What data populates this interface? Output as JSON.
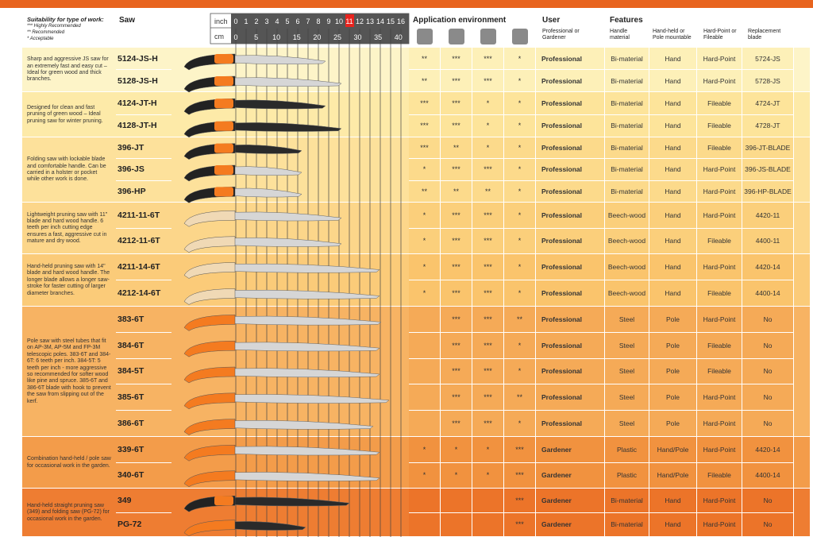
{
  "legend": {
    "title": "Suitability for type of work:",
    "items": [
      "*** Highly Recommended",
      "**  Recommended",
      "*   Acceptable"
    ]
  },
  "header": {
    "saw": "Saw",
    "inch": "inch",
    "cm": "cm",
    "inch_ticks": [
      0,
      1,
      2,
      3,
      4,
      5,
      6,
      7,
      8,
      9,
      10,
      11,
      12,
      13,
      14,
      15,
      16
    ],
    "cm_ticks": [
      0,
      5,
      10,
      15,
      20,
      25,
      30,
      35,
      40
    ],
    "application": "Application environment",
    "user": "User",
    "user_sub": "Professional or Gardener",
    "features": "Features",
    "handle": "Handle material",
    "mount": "Hand-held or Pole mountable",
    "point": "Hard-Point or Fileable",
    "blade": "Replacement blade"
  },
  "groups": [
    {
      "description": "Sharp and aggressive JS saw for an extremely fast and easy cut – Ideal for green wood and thick branches.",
      "rows": [
        {
          "saw": "5124-JS-H",
          "ratings": [
            "**",
            "***",
            "***",
            "*"
          ],
          "user": "Professional",
          "handle": "Bi-material",
          "mount": "Hand",
          "point": "Hard-Point",
          "blade": "5724-JS"
        },
        {
          "saw": "5128-JS-H",
          "ratings": [
            "**",
            "***",
            "***",
            "*"
          ],
          "user": "Professional",
          "handle": "Bi-material",
          "mount": "Hand",
          "point": "Hard-Point",
          "blade": "5728-JS"
        }
      ]
    },
    {
      "description": "Designed for clean and fast pruning of green wood – Ideal pruning saw for winter pruning.",
      "rows": [
        {
          "saw": "4124-JT-H",
          "ratings": [
            "***",
            "***",
            "*",
            "*"
          ],
          "user": "Professional",
          "handle": "Bi-material",
          "mount": "Hand",
          "point": "Fileable",
          "blade": "4724-JT"
        },
        {
          "saw": "4128-JT-H",
          "ratings": [
            "***",
            "***",
            "*",
            "*"
          ],
          "user": "Professional",
          "handle": "Bi-material",
          "mount": "Hand",
          "point": "Fileable",
          "blade": "4728-JT"
        }
      ]
    },
    {
      "description": "Folding saw with lockable blade and comfortable handle. Can be carried in a holster or pocket while other work is done.",
      "rows": [
        {
          "saw": "396-JT",
          "ratings": [
            "***",
            "**",
            "*",
            "*"
          ],
          "user": "Professional",
          "handle": "Bi-material",
          "mount": "Hand",
          "point": "Fileable",
          "blade": "396-JT-BLADE"
        },
        {
          "saw": "396-JS",
          "ratings": [
            "*",
            "***",
            "***",
            "*"
          ],
          "user": "Professional",
          "handle": "Bi-material",
          "mount": "Hand",
          "point": "Hard-Point",
          "blade": "396-JS-BLADE"
        },
        {
          "saw": "396-HP",
          "ratings": [
            "**",
            "**",
            "**",
            "*"
          ],
          "user": "Professional",
          "handle": "Bi-material",
          "mount": "Hand",
          "point": "Hard-Point",
          "blade": "396-HP-BLADE"
        }
      ]
    },
    {
      "description": "Lightweight pruning saw with 11\" blade and hard wood handle. 6 teeth per inch cutting edge ensures a fast, aggressive cut in mature and dry wood.",
      "rows": [
        {
          "saw": "4211-11-6T",
          "ratings": [
            "*",
            "***",
            "***",
            "*"
          ],
          "user": "Professional",
          "handle": "Beech-wood",
          "mount": "Hand",
          "point": "Hard-Point",
          "blade": "4420-11"
        },
        {
          "saw": "4212-11-6T",
          "ratings": [
            "*",
            "***",
            "***",
            "*"
          ],
          "user": "Professional",
          "handle": "Beech-wood",
          "mount": "Hand",
          "point": "Fileable",
          "blade": "4400-11"
        }
      ]
    },
    {
      "description": "Hand-held pruning saw with 14\" blade and hard wood handle. The longer blade allows a longer saw-stroke for faster cutting of larger diameter branches.",
      "rows": [
        {
          "saw": "4211-14-6T",
          "ratings": [
            "*",
            "***",
            "***",
            "*"
          ],
          "user": "Professional",
          "handle": "Beech-wood",
          "mount": "Hand",
          "point": "Hard-Point",
          "blade": "4420-14"
        },
        {
          "saw": "4212-14-6T",
          "ratings": [
            "*",
            "***",
            "***",
            "*"
          ],
          "user": "Professional",
          "handle": "Beech-wood",
          "mount": "Hand",
          "point": "Fileable",
          "blade": "4400-14"
        }
      ]
    },
    {
      "description": "Pole saw with steel tubes that fit on AP-3M, AP-5M and FP-3M telescopic poles. 383-6T and 384-6T: 6 teeth per inch. 384-5T: 5 teeth per inch - more aggressive so recommended for softer wood like pine and spruce. 385-6T and 386-6T blade with hook to prevent the saw from slipping out of the kerf.",
      "rows": [
        {
          "saw": "383-6T",
          "ratings": [
            null,
            "***",
            "***",
            "**"
          ],
          "user": "Professional",
          "handle": "Steel",
          "mount": "Pole",
          "point": "Hard-Point",
          "blade": "No"
        },
        {
          "saw": "384-6T",
          "ratings": [
            null,
            "***",
            "***",
            "*"
          ],
          "user": "Professional",
          "handle": "Steel",
          "mount": "Pole",
          "point": "Fileable",
          "blade": "No"
        },
        {
          "saw": "384-5T",
          "ratings": [
            null,
            "***",
            "***",
            "*"
          ],
          "user": "Professional",
          "handle": "Steel",
          "mount": "Pole",
          "point": "Fileable",
          "blade": "No"
        },
        {
          "saw": "385-6T",
          "ratings": [
            null,
            "***",
            "***",
            "**"
          ],
          "user": "Professional",
          "handle": "Steel",
          "mount": "Pole",
          "point": "Hard-Point",
          "blade": "No"
        },
        {
          "saw": "386-6T",
          "ratings": [
            null,
            "***",
            "***",
            "*"
          ],
          "user": "Professional",
          "handle": "Steel",
          "mount": "Pole",
          "point": "Hard-Point",
          "blade": "No"
        }
      ]
    },
    {
      "description": "Combination hand-held / pole saw for occasional work in the garden.",
      "rows": [
        {
          "saw": "339-6T",
          "ratings": [
            "*",
            "*",
            "*",
            "***"
          ],
          "user": "Gardener",
          "handle": "Plastic",
          "mount": "Hand/Pole",
          "point": "Hard-Point",
          "blade": "4420-14"
        },
        {
          "saw": "340-6T",
          "ratings": [
            "*",
            "*",
            "*",
            "***"
          ],
          "user": "Gardener",
          "handle": "Plastic",
          "mount": "Hand/Pole",
          "point": "Fileable",
          "blade": "4400-14"
        }
      ]
    },
    {
      "description": "Hand-held straight pruning saw (349) and folding saw (PG-72) for occasional work in the garden.",
      "rows": [
        {
          "saw": "349",
          "ratings": [
            null,
            null,
            null,
            "***"
          ],
          "user": "Gardener",
          "handle": "Bi-material",
          "mount": "Hand",
          "point": "Hard-Point",
          "blade": "No"
        },
        {
          "saw": "PG-72",
          "ratings": [
            null,
            null,
            null,
            "***"
          ],
          "user": "Gardener",
          "handle": "Bi-material",
          "mount": "Hand",
          "point": "Hard-Point",
          "blade": "No"
        }
      ]
    }
  ]
}
